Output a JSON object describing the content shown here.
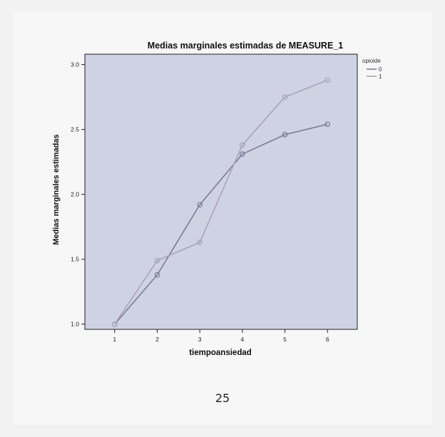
{
  "chart_data": {
    "type": "line",
    "title": "Medias marginales estimadas de MEASURE_1",
    "xlabel": "tiempoansiedad",
    "ylabel": "Medias marginales estimadas",
    "x": [
      1,
      2,
      3,
      4,
      5,
      6
    ],
    "x_tick_labels": [
      "1",
      "2",
      "3",
      "4",
      "5",
      "6"
    ],
    "ylim": [
      0.96,
      3.08
    ],
    "y_ticks": [
      1.0,
      1.5,
      2.0,
      2.5,
      3.0
    ],
    "y_tick_labels": [
      "1.0",
      "1.5",
      "2.0",
      "2.5",
      "3.0"
    ],
    "grid": false,
    "legend_position": "right",
    "legend_title": "opioide",
    "series": [
      {
        "name": "0",
        "values": [
          1.0,
          1.38,
          1.92,
          2.31,
          2.46,
          2.54
        ],
        "color": "#7a7d9a",
        "marker": "circle"
      },
      {
        "name": "1",
        "values": [
          1.0,
          1.49,
          1.63,
          2.38,
          2.75,
          2.88
        ],
        "color": "#a9a2bd",
        "marker": "circle"
      }
    ],
    "plot_background": "#cfd2e3"
  },
  "page": {
    "number": "25"
  }
}
